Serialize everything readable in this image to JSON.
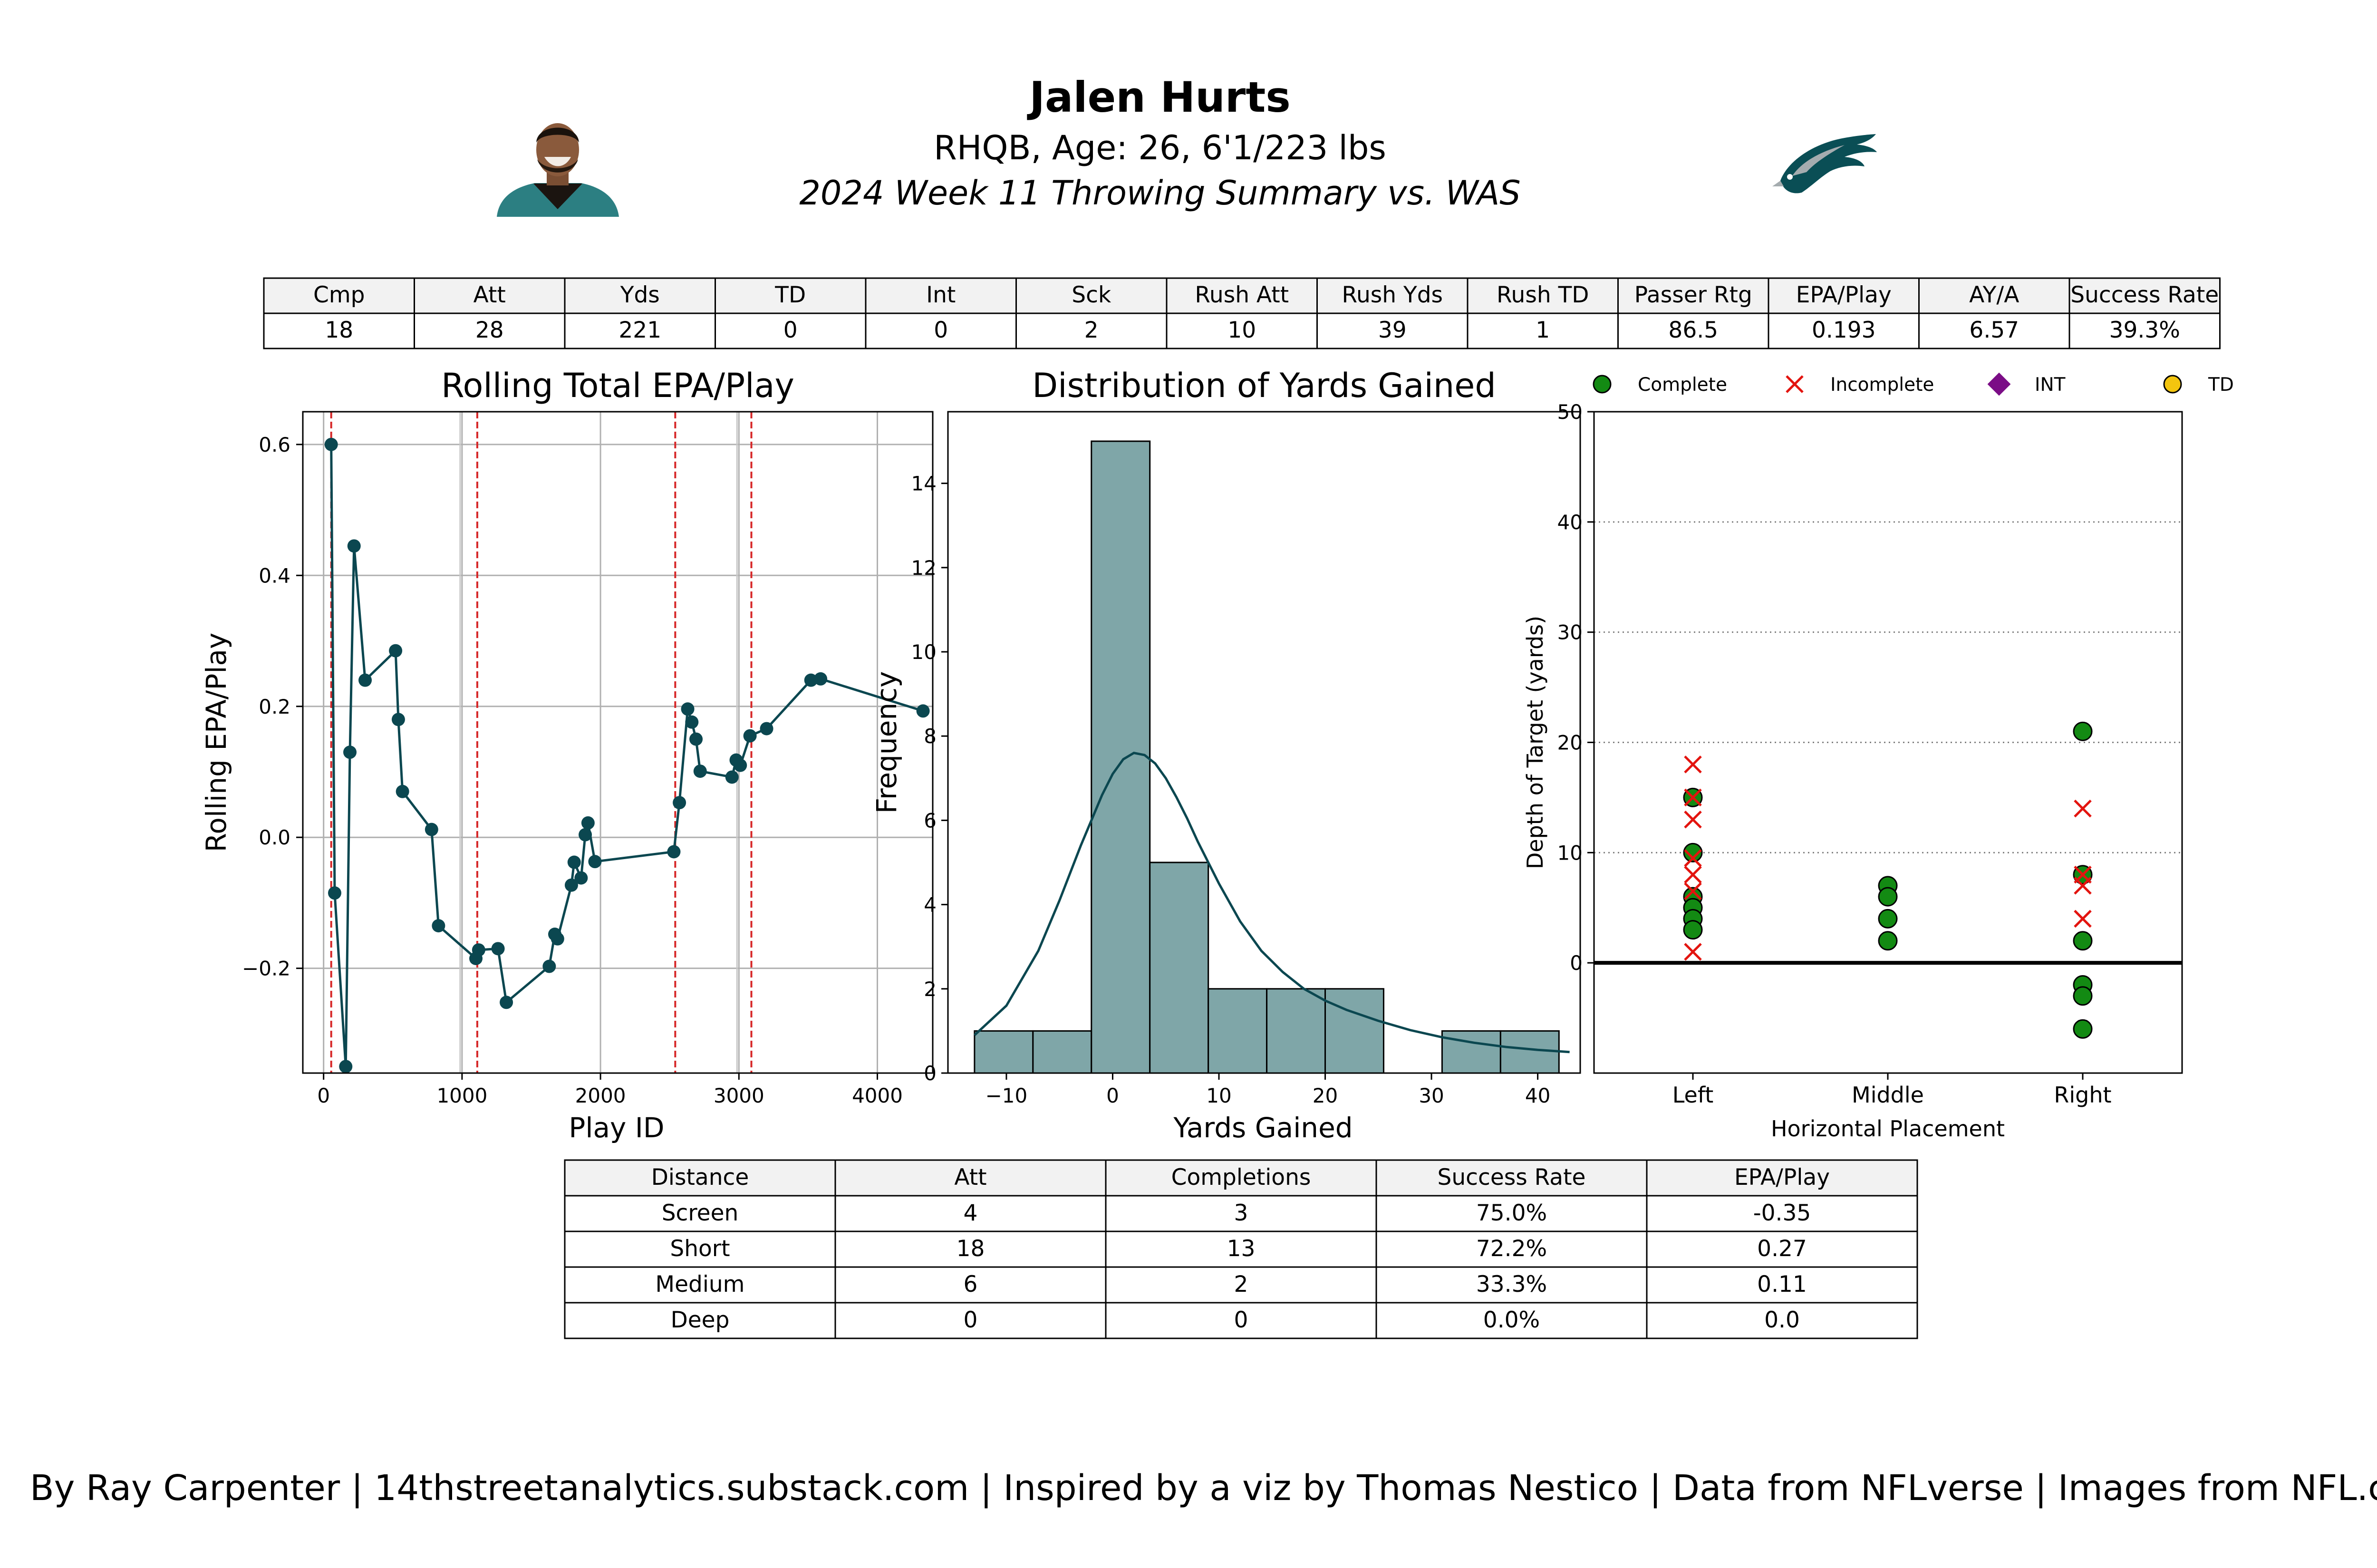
{
  "header": {
    "name": "Jalen Hurts",
    "bio": "RHQB, Age: 26, 6'1/223 lbs",
    "summary": "2024 Week 11 Throwing Summary vs. WAS",
    "headshot_icon": "player-headshot-icon",
    "logo_icon": "eagles-logo-icon"
  },
  "stats_table": {
    "headers": [
      "Cmp",
      "Att",
      "Yds",
      "TD",
      "Int",
      "Sck",
      "Rush Att",
      "Rush Yds",
      "Rush TD",
      "Passer Rtg",
      "EPA/Play",
      "AY/A",
      "Success Rate"
    ],
    "values": [
      "18",
      "28",
      "221",
      "0",
      "0",
      "2",
      "10",
      "39",
      "1",
      "86.5",
      "0.193",
      "6.57",
      "39.3%"
    ]
  },
  "distance_table": {
    "headers": [
      "Distance",
      "Att",
      "Completions",
      "Success Rate",
      "EPA/Play"
    ],
    "rows": [
      [
        "Screen",
        "4",
        "3",
        "75.0%",
        "-0.35"
      ],
      [
        "Short",
        "18",
        "13",
        "72.2%",
        "0.27"
      ],
      [
        "Medium",
        "6",
        "2",
        "33.3%",
        "0.11"
      ],
      [
        "Deep",
        "0",
        "0",
        "0.0%",
        "0.0"
      ]
    ]
  },
  "footer": {
    "credit": "By Ray Carpenter | 14thstreetanalytics.substack.com | Inspired by a viz by Thomas Nestico | Data from NFLverse | Images from NFL.com"
  },
  "colors": {
    "line": "#0b4750",
    "hist": "#7fa6a8",
    "complete": "#138a13",
    "incomplete": "#e3140f",
    "int": "#7b0d86",
    "td": "#f3c50f"
  },
  "chart_data": [
    {
      "type": "line",
      "title": "Rolling Total EPA/Play",
      "xlabel": "Play ID",
      "ylabel": "Rolling EPA/Play",
      "xlim": [
        -150,
        4400
      ],
      "ylim": [
        -0.36,
        0.65
      ],
      "xticks": [
        0,
        1000,
        2000,
        3000,
        4000
      ],
      "yticks": [
        -0.2,
        0.0,
        0.2,
        0.4,
        0.6
      ],
      "ytick_labels": [
        "−0.2",
        "0.0",
        "0.2",
        "0.4",
        "0.6"
      ],
      "grid": true,
      "x": [
        55,
        80,
        160,
        190,
        220,
        300,
        520,
        540,
        570,
        780,
        830,
        1100,
        1120,
        1260,
        1320,
        1630,
        1670,
        1690,
        1790,
        1810,
        1860,
        1890,
        1910,
        1960,
        2530,
        2570,
        2630,
        2660,
        2690,
        2720,
        2950,
        2980,
        3010,
        3080,
        3200,
        3520,
        3590,
        4330
      ],
      "y": [
        0.6,
        -0.085,
        -0.35,
        0.13,
        0.445,
        0.24,
        0.285,
        0.18,
        0.07,
        0.012,
        -0.135,
        -0.185,
        -0.172,
        -0.17,
        -0.252,
        -0.197,
        -0.148,
        -0.155,
        -0.073,
        -0.038,
        -0.062,
        0.004,
        0.022,
        -0.037,
        -0.022,
        0.053,
        0.196,
        0.176,
        0.15,
        0.101,
        0.092,
        0.118,
        0.11,
        0.155,
        0.166,
        0.24,
        0.242,
        0.193
      ],
      "vlines": [
        55,
        1110,
        2540,
        3090
      ],
      "gray_vlines": [
        1000,
        3000
      ]
    },
    {
      "type": "bar",
      "title": "Distribution of Yards Gained",
      "xlabel": "Yards Gained",
      "ylabel": "Frequency",
      "xlim": [
        -15.5,
        44
      ],
      "ylim": [
        0,
        15.7
      ],
      "xticks": [
        -10,
        0,
        10,
        20,
        30,
        40
      ],
      "xtick_labels": [
        "−10",
        "0",
        "10",
        "20",
        "30",
        "40"
      ],
      "yticks": [
        0,
        2,
        4,
        6,
        8,
        10,
        12,
        14
      ],
      "bin_edges": [
        -13,
        -7.5,
        -2,
        3.5,
        9,
        14.5,
        20,
        25.5,
        31,
        36.5,
        42
      ],
      "counts": [
        1,
        1,
        15,
        5,
        2,
        2,
        2,
        0,
        1,
        1
      ],
      "kde_x": [
        -13,
        -10,
        -7,
        -5,
        -3,
        -1,
        0,
        1,
        2,
        3,
        4,
        5,
        6,
        7,
        8,
        10,
        12,
        14,
        16,
        18,
        20,
        22,
        25,
        28,
        31,
        34,
        37,
        40,
        43
      ],
      "kde_y": [
        0.9,
        1.6,
        2.9,
        4.1,
        5.4,
        6.6,
        7.1,
        7.45,
        7.6,
        7.55,
        7.35,
        7.0,
        6.55,
        6.05,
        5.5,
        4.5,
        3.6,
        2.9,
        2.4,
        2.0,
        1.72,
        1.5,
        1.24,
        1.02,
        0.85,
        0.72,
        0.62,
        0.55,
        0.5
      ]
    },
    {
      "type": "scatter",
      "xlabel": "Horizontal Placement",
      "ylabel": "Depth of Target (yards)",
      "categories": [
        "Left",
        "Middle",
        "Right"
      ],
      "ylim": [
        -10,
        50
      ],
      "yticks": [
        0,
        10,
        20,
        30,
        40,
        50
      ],
      "legend": {
        "placement": "top",
        "entries": [
          {
            "label": "Complete",
            "marker": "circle",
            "color": "#138a13"
          },
          {
            "label": "Incomplete",
            "marker": "x",
            "color": "#e3140f"
          },
          {
            "label": "INT",
            "marker": "diamond",
            "color": "#7b0d86"
          },
          {
            "label": "TD",
            "marker": "circle",
            "color": "#f3c50f"
          }
        ]
      },
      "complete": [
        {
          "x": "Left",
          "y": 15
        },
        {
          "x": "Left",
          "y": 10
        },
        {
          "x": "Left",
          "y": 6
        },
        {
          "x": "Left",
          "y": 5
        },
        {
          "x": "Left",
          "y": 4
        },
        {
          "x": "Left",
          "y": 3
        },
        {
          "x": "Middle",
          "y": 7
        },
        {
          "x": "Middle",
          "y": 6
        },
        {
          "x": "Middle",
          "y": 4
        },
        {
          "x": "Middle",
          "y": 2
        },
        {
          "x": "Right",
          "y": 21
        },
        {
          "x": "Right",
          "y": 8
        },
        {
          "x": "Right",
          "y": 2
        },
        {
          "x": "Right",
          "y": -2
        },
        {
          "x": "Right",
          "y": -3
        },
        {
          "x": "Right",
          "y": -6
        }
      ],
      "incomplete": [
        {
          "x": "Left",
          "y": 18
        },
        {
          "x": "Left",
          "y": 15
        },
        {
          "x": "Left",
          "y": 13
        },
        {
          "x": "Left",
          "y": 9.5
        },
        {
          "x": "Left",
          "y": 8
        },
        {
          "x": "Left",
          "y": 6.5
        },
        {
          "x": "Left",
          "y": 1
        },
        {
          "x": "Right",
          "y": 14
        },
        {
          "x": "Right",
          "y": 8
        },
        {
          "x": "Right",
          "y": 7
        },
        {
          "x": "Right",
          "y": 4
        }
      ],
      "int": [],
      "td": []
    }
  ]
}
